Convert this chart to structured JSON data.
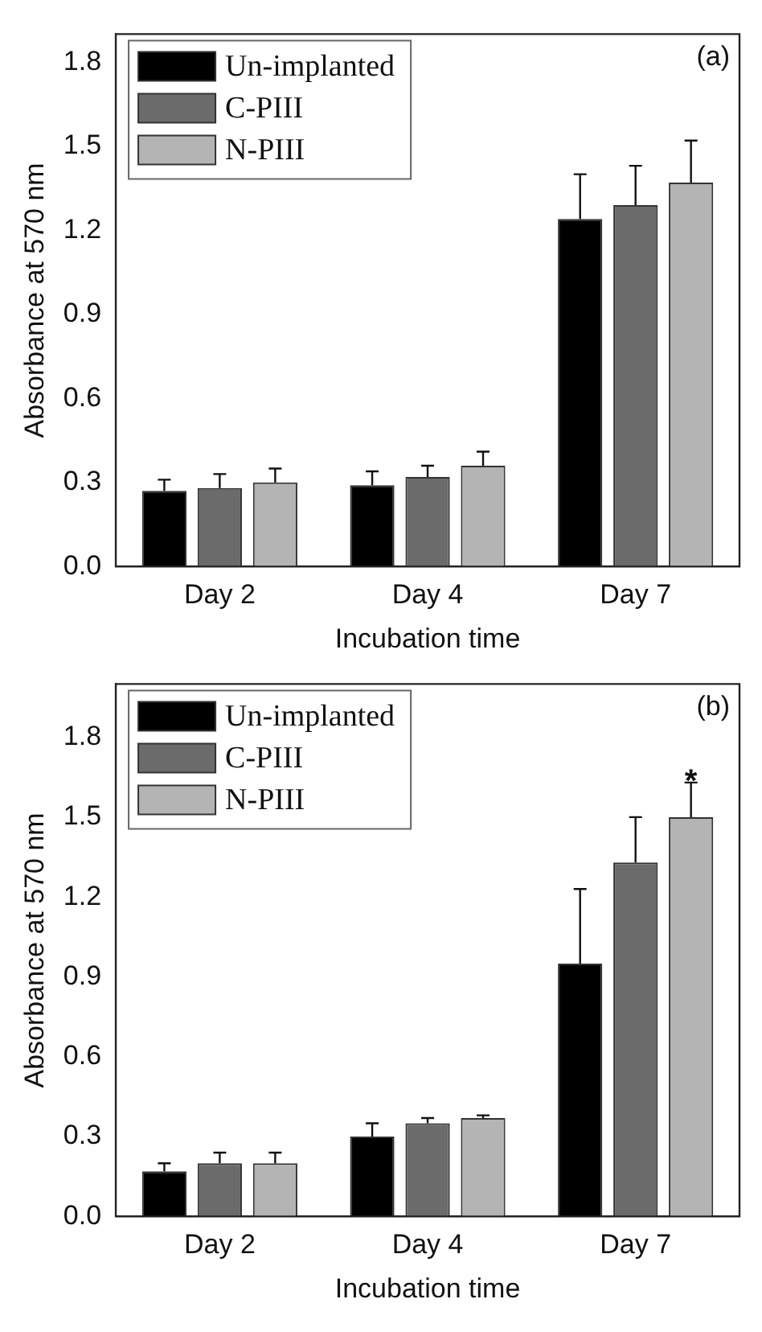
{
  "chart_data": [
    {
      "type": "bar",
      "annotations": [
        "(a)"
      ],
      "xlabel": "Incubation time",
      "ylabel": "Absorbance at 570 nm",
      "categories": [
        "Day 2",
        "Day 4",
        "Day 7"
      ],
      "series": [
        {
          "name": "Un-implanted",
          "color": "#000000",
          "values": [
            0.27,
            0.29,
            1.24
          ],
          "errors": [
            0.04,
            0.05,
            0.16
          ]
        },
        {
          "name": "C-PIII",
          "color": "#6b6b6b",
          "values": [
            0.28,
            0.32,
            1.29
          ],
          "errors": [
            0.05,
            0.04,
            0.14
          ]
        },
        {
          "name": "N-PIII",
          "color": "#b4b4b4",
          "values": [
            0.3,
            0.36,
            1.37
          ],
          "errors": [
            0.05,
            0.05,
            0.15
          ]
        }
      ],
      "ylim": [
        0,
        1.9
      ],
      "yticks": [
        {
          "value": 0,
          "label": "0.0"
        },
        0.3,
        0.6,
        0.9,
        1.2,
        1.5,
        1.8
      ],
      "grid": false,
      "legend": "top left"
    },
    {
      "type": "bar",
      "annotations": [
        "(b)",
        "*"
      ],
      "xlabel": "Incubation time",
      "ylabel": "Absorbance at 570 nm",
      "categories": [
        "Day 2",
        "Day 4",
        "Day 7"
      ],
      "series": [
        {
          "name": "Un-implanted",
          "color": "#000000",
          "values": [
            0.17,
            0.3,
            0.95
          ],
          "errors": [
            0.03,
            0.05,
            0.28
          ]
        },
        {
          "name": "C-PIII",
          "color": "#6b6b6b",
          "values": [
            0.2,
            0.35,
            1.33
          ],
          "errors": [
            0.04,
            0.02,
            0.17
          ]
        },
        {
          "name": "N-PIII",
          "color": "#b4b4b4",
          "values": [
            0.2,
            0.37,
            1.5
          ],
          "errors": [
            0.04,
            0.01,
            0.13
          ]
        }
      ],
      "ylim": [
        0,
        2.0
      ],
      "yticks": [
        {
          "value": 0,
          "label": "0.0"
        },
        0.3,
        0.6,
        0.9,
        1.2,
        1.5,
        1.8
      ],
      "grid": false,
      "legend": "top left"
    }
  ]
}
